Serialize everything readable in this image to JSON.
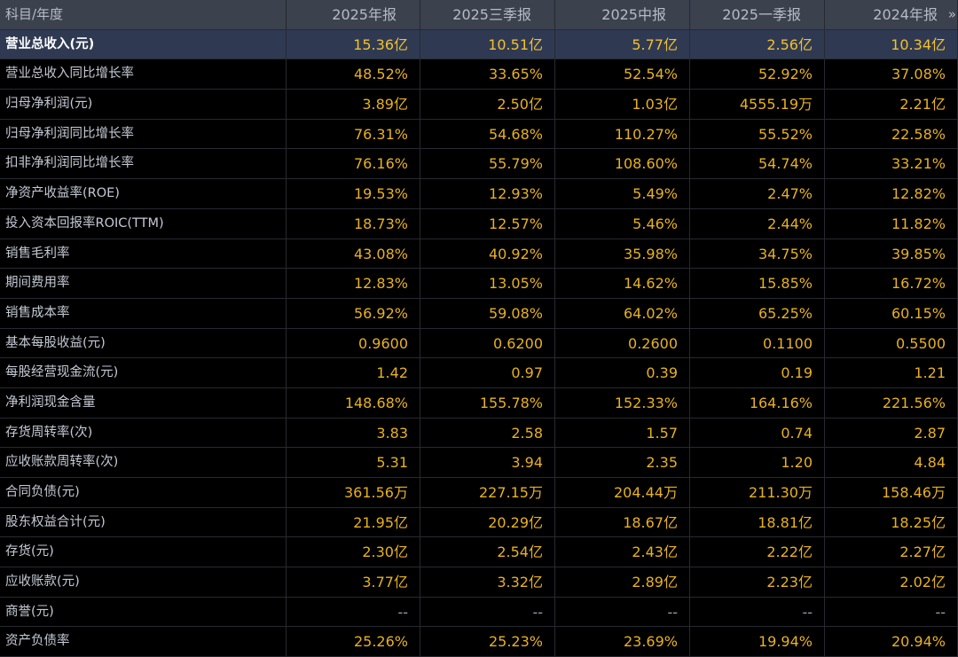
{
  "table": {
    "header": {
      "label": "科目/年度",
      "periods": [
        "2025年报",
        "2025三季报",
        "2025中报",
        "2025一季报",
        "2024年报"
      ],
      "more_icon": "»"
    },
    "rows": [
      {
        "label": "营业总收入(元)",
        "values": [
          "15.36亿",
          "10.51亿",
          "5.77亿",
          "2.56亿",
          "10.34亿"
        ]
      },
      {
        "label": "营业总收入同比增长率",
        "values": [
          "48.52%",
          "33.65%",
          "52.54%",
          "52.92%",
          "37.08%"
        ]
      },
      {
        "label": "归母净利润(元)",
        "values": [
          "3.89亿",
          "2.50亿",
          "1.03亿",
          "4555.19万",
          "2.21亿"
        ]
      },
      {
        "label": "归母净利润同比增长率",
        "values": [
          "76.31%",
          "54.68%",
          "110.27%",
          "55.52%",
          "22.58%"
        ]
      },
      {
        "label": "扣非净利润同比增长率",
        "values": [
          "76.16%",
          "55.79%",
          "108.60%",
          "54.74%",
          "33.21%"
        ]
      },
      {
        "label": "净资产收益率(ROE)",
        "values": [
          "19.53%",
          "12.93%",
          "5.49%",
          "2.47%",
          "12.82%"
        ]
      },
      {
        "label": "投入资本回报率ROIC(TTM)",
        "values": [
          "18.73%",
          "12.57%",
          "5.46%",
          "2.44%",
          "11.82%"
        ]
      },
      {
        "label": "销售毛利率",
        "values": [
          "43.08%",
          "40.92%",
          "35.98%",
          "34.75%",
          "39.85%"
        ]
      },
      {
        "label": "期间费用率",
        "values": [
          "12.83%",
          "13.05%",
          "14.62%",
          "15.85%",
          "16.72%"
        ]
      },
      {
        "label": "销售成本率",
        "values": [
          "56.92%",
          "59.08%",
          "64.02%",
          "65.25%",
          "60.15%"
        ]
      },
      {
        "label": "基本每股收益(元)",
        "values": [
          "0.9600",
          "0.6200",
          "0.2600",
          "0.1100",
          "0.5500"
        ]
      },
      {
        "label": "每股经营现金流(元)",
        "values": [
          "1.42",
          "0.97",
          "0.39",
          "0.19",
          "1.21"
        ]
      },
      {
        "label": "净利润现金含量",
        "values": [
          "148.68%",
          "155.78%",
          "152.33%",
          "164.16%",
          "221.56%"
        ]
      },
      {
        "label": "存货周转率(次)",
        "values": [
          "3.83",
          "2.58",
          "1.57",
          "0.74",
          "2.87"
        ]
      },
      {
        "label": "应收账款周转率(次)",
        "values": [
          "5.31",
          "3.94",
          "2.35",
          "1.20",
          "4.84"
        ]
      },
      {
        "label": "合同负债(元)",
        "values": [
          "361.56万",
          "227.15万",
          "204.44万",
          "211.30万",
          "158.46万"
        ]
      },
      {
        "label": "股东权益合计(元)",
        "values": [
          "21.95亿",
          "20.29亿",
          "18.67亿",
          "18.81亿",
          "18.25亿"
        ]
      },
      {
        "label": "存货(元)",
        "values": [
          "2.30亿",
          "2.54亿",
          "2.43亿",
          "2.22亿",
          "2.27亿"
        ]
      },
      {
        "label": "应收账款(元)",
        "values": [
          "3.77亿",
          "3.32亿",
          "2.89亿",
          "2.23亿",
          "2.02亿"
        ]
      },
      {
        "label": "商誉(元)",
        "values": [
          "--",
          "--",
          "--",
          "--",
          "--"
        ]
      },
      {
        "label": "资产负债率",
        "values": [
          "25.26%",
          "25.23%",
          "23.69%",
          "19.94%",
          "20.94%"
        ]
      }
    ]
  },
  "colors": {
    "background": "#000000",
    "header_bg": "#3b414d",
    "highlight_row_bg": "#2f3a52",
    "value_color": "#e8b21e",
    "label_color": "#c4c9d4"
  }
}
